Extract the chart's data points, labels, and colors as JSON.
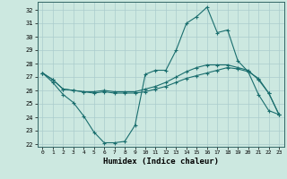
{
  "xlabel": "Humidex (Indice chaleur)",
  "background_color": "#cce8e0",
  "grid_color": "#aacccc",
  "line_color": "#1a6e6e",
  "xlim": [
    -0.5,
    23.5
  ],
  "ylim": [
    21.8,
    32.6
  ],
  "yticks": [
    22,
    23,
    24,
    25,
    26,
    27,
    28,
    29,
    30,
    31,
    32
  ],
  "xticks": [
    0,
    1,
    2,
    3,
    4,
    5,
    6,
    7,
    8,
    9,
    10,
    11,
    12,
    13,
    14,
    15,
    16,
    17,
    18,
    19,
    20,
    21,
    22,
    23
  ],
  "series": [
    [
      27.3,
      26.6,
      25.7,
      25.1,
      24.1,
      22.9,
      22.1,
      22.1,
      22.2,
      23.4,
      27.2,
      27.5,
      27.5,
      29.0,
      31.0,
      31.5,
      32.2,
      30.3,
      30.5,
      28.2,
      27.4,
      25.7,
      24.5,
      24.2
    ],
    [
      27.3,
      26.8,
      26.1,
      26.0,
      25.9,
      25.9,
      26.0,
      25.9,
      25.9,
      25.9,
      26.1,
      26.3,
      26.6,
      27.0,
      27.4,
      27.7,
      27.9,
      27.9,
      27.9,
      27.7,
      27.5,
      26.8,
      25.8,
      24.2
    ],
    [
      27.3,
      26.8,
      26.1,
      26.0,
      25.9,
      25.8,
      25.9,
      25.8,
      25.8,
      25.8,
      25.9,
      26.1,
      26.3,
      26.6,
      26.9,
      27.1,
      27.3,
      27.5,
      27.7,
      27.6,
      27.4,
      26.9,
      25.8,
      24.2
    ]
  ]
}
